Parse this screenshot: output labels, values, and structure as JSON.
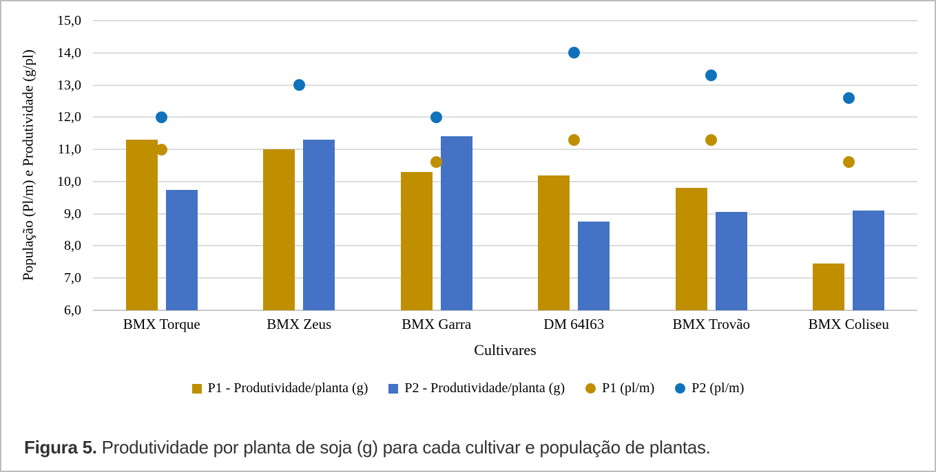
{
  "figure": {
    "caption_label": "Figura 5.",
    "caption_text": " Produtividade por planta de soja (g) para cada cultivar e população de plantas."
  },
  "chart_data": {
    "type": "bar",
    "subtype": "grouped bars with scatter overlay (combo chart)",
    "categories": [
      "BMX Torque",
      "BMX Zeus",
      "BMX Garra",
      "DM 64I63",
      "BMX Trovão",
      "BMX Coliseu"
    ],
    "series": [
      {
        "name": "P1 - Produtividade/planta (g)",
        "type": "bar",
        "color": "#BF8F00",
        "values": [
          11.3,
          11.0,
          10.3,
          10.2,
          9.8,
          7.45
        ]
      },
      {
        "name": "P2 - Produtividade/planta (g)",
        "type": "bar",
        "color": "#4472C4",
        "values": [
          9.75,
          11.3,
          11.4,
          8.75,
          9.05,
          9.1
        ]
      },
      {
        "name": "P1 (pl/m)",
        "type": "scatter",
        "color": "#BF8F00",
        "values": [
          11.0,
          null,
          10.6,
          11.3,
          11.3,
          10.6
        ]
      },
      {
        "name": "P2 (pl/m)",
        "type": "scatter",
        "color": "#1072BA",
        "values": [
          12.0,
          13.0,
          12.0,
          14.0,
          13.3,
          12.6
        ]
      }
    ],
    "title": "",
    "xlabel": "Cultivares",
    "ylabel": "População (Pl/m) e Produtividade (g/pl)",
    "ylim": [
      6.0,
      15.0
    ],
    "yticks": [
      6,
      7,
      8,
      9,
      10,
      11,
      12,
      13,
      14,
      15
    ],
    "ytick_labels": [
      "6,0",
      "7,0",
      "8,0",
      "9,0",
      "10,0",
      "11,0",
      "12,0",
      "13,0",
      "14,0",
      "15,0"
    ],
    "grid": true,
    "gridline_color": "#DCDCDC",
    "legend_position": "bottom"
  }
}
